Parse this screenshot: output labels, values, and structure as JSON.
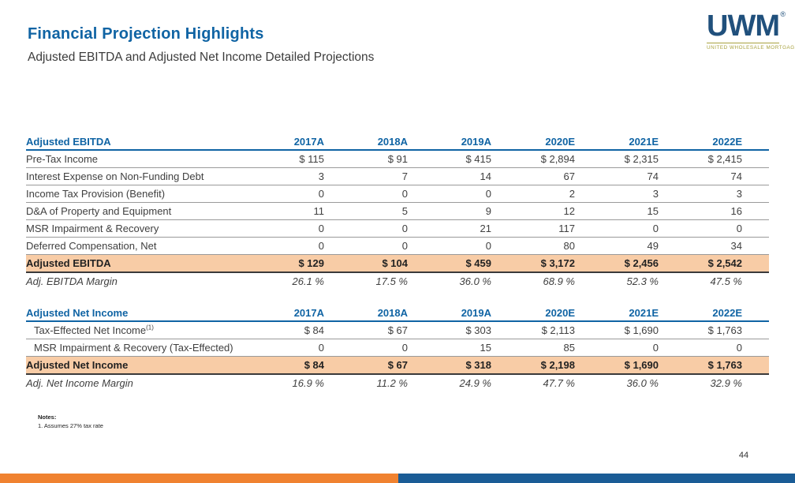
{
  "slide": {
    "title": "Financial Projection Highlights",
    "subtitle": "Adjusted EBITDA and Adjusted Net Income Detailed Projections",
    "page_number": "44"
  },
  "logo": {
    "text": "UWM",
    "registered": "®",
    "tagline": "UNITED WHOLESALE MORTGAGE"
  },
  "colors": {
    "accent_blue": "#1064A4",
    "logo_navy": "#20507C",
    "logo_olive": "#A8A23F",
    "highlight_peach": "#F8CCA6",
    "bar_orange": "#F08230",
    "bar_blue": "#1A5C96",
    "text_dark": "#404040"
  },
  "ebitda_table": {
    "title": "Adjusted EBITDA",
    "columns": [
      "2017A",
      "2018A",
      "2019A",
      "2020E",
      "2021E",
      "2022E"
    ],
    "rows": [
      {
        "label": "Pre-Tax Income",
        "values": [
          "$ 115",
          "$ 91",
          "$ 415",
          "$ 2,894",
          "$ 2,315",
          "$ 2,415"
        ]
      },
      {
        "label": "Interest Expense on Non-Funding Debt",
        "values": [
          "3",
          "7",
          "14",
          "67",
          "74",
          "74"
        ]
      },
      {
        "label": "Income Tax Provision (Benefit)",
        "values": [
          "0",
          "0",
          "0",
          "2",
          "3",
          "3"
        ]
      },
      {
        "label": "D&A of Property and Equipment",
        "values": [
          "11",
          "5",
          "9",
          "12",
          "15",
          "16"
        ]
      },
      {
        "label": "MSR Impairment & Recovery",
        "values": [
          "0",
          "0",
          "21",
          "117",
          "0",
          "0"
        ]
      },
      {
        "label": "Deferred Compensation, Net",
        "values": [
          "0",
          "0",
          "0",
          "80",
          "49",
          "34"
        ]
      }
    ],
    "total": {
      "label": "Adjusted EBITDA",
      "values": [
        "$ 129",
        "$ 104",
        "$ 459",
        "$ 3,172",
        "$ 2,456",
        "$ 2,542"
      ]
    },
    "margin": {
      "label": "Adj. EBITDA Margin",
      "values": [
        "26.1 %",
        "17.5 %",
        "36.0 %",
        "68.9 %",
        "52.3 %",
        "47.5 %"
      ]
    }
  },
  "net_income_table": {
    "title": "Adjusted Net Income",
    "columns": [
      "2017A",
      "2018A",
      "2019A",
      "2020E",
      "2021E",
      "2022E"
    ],
    "rows": [
      {
        "label": "Tax-Effected Net Income",
        "sup": "(1)",
        "values": [
          "$ 84",
          "$ 67",
          "$ 303",
          "$ 2,113",
          "$ 1,690",
          "$ 1,763"
        ]
      },
      {
        "label": "MSR Impairment & Recovery (Tax-Effected)",
        "sup": "",
        "values": [
          "0",
          "0",
          "15",
          "85",
          "0",
          "0"
        ]
      }
    ],
    "total": {
      "label": "Adjusted Net Income",
      "values": [
        "$ 84",
        "$ 67",
        "$ 318",
        "$ 2,198",
        "$ 1,690",
        "$ 1,763"
      ]
    },
    "margin": {
      "label": "Adj. Net Income Margin",
      "values": [
        "16.9 %",
        "11.2 %",
        "24.9 %",
        "47.7 %",
        "36.0 %",
        "32.9 %"
      ]
    }
  },
  "notes": {
    "heading": "Notes:",
    "items": [
      "1.  Assumes 27% tax rate"
    ]
  }
}
